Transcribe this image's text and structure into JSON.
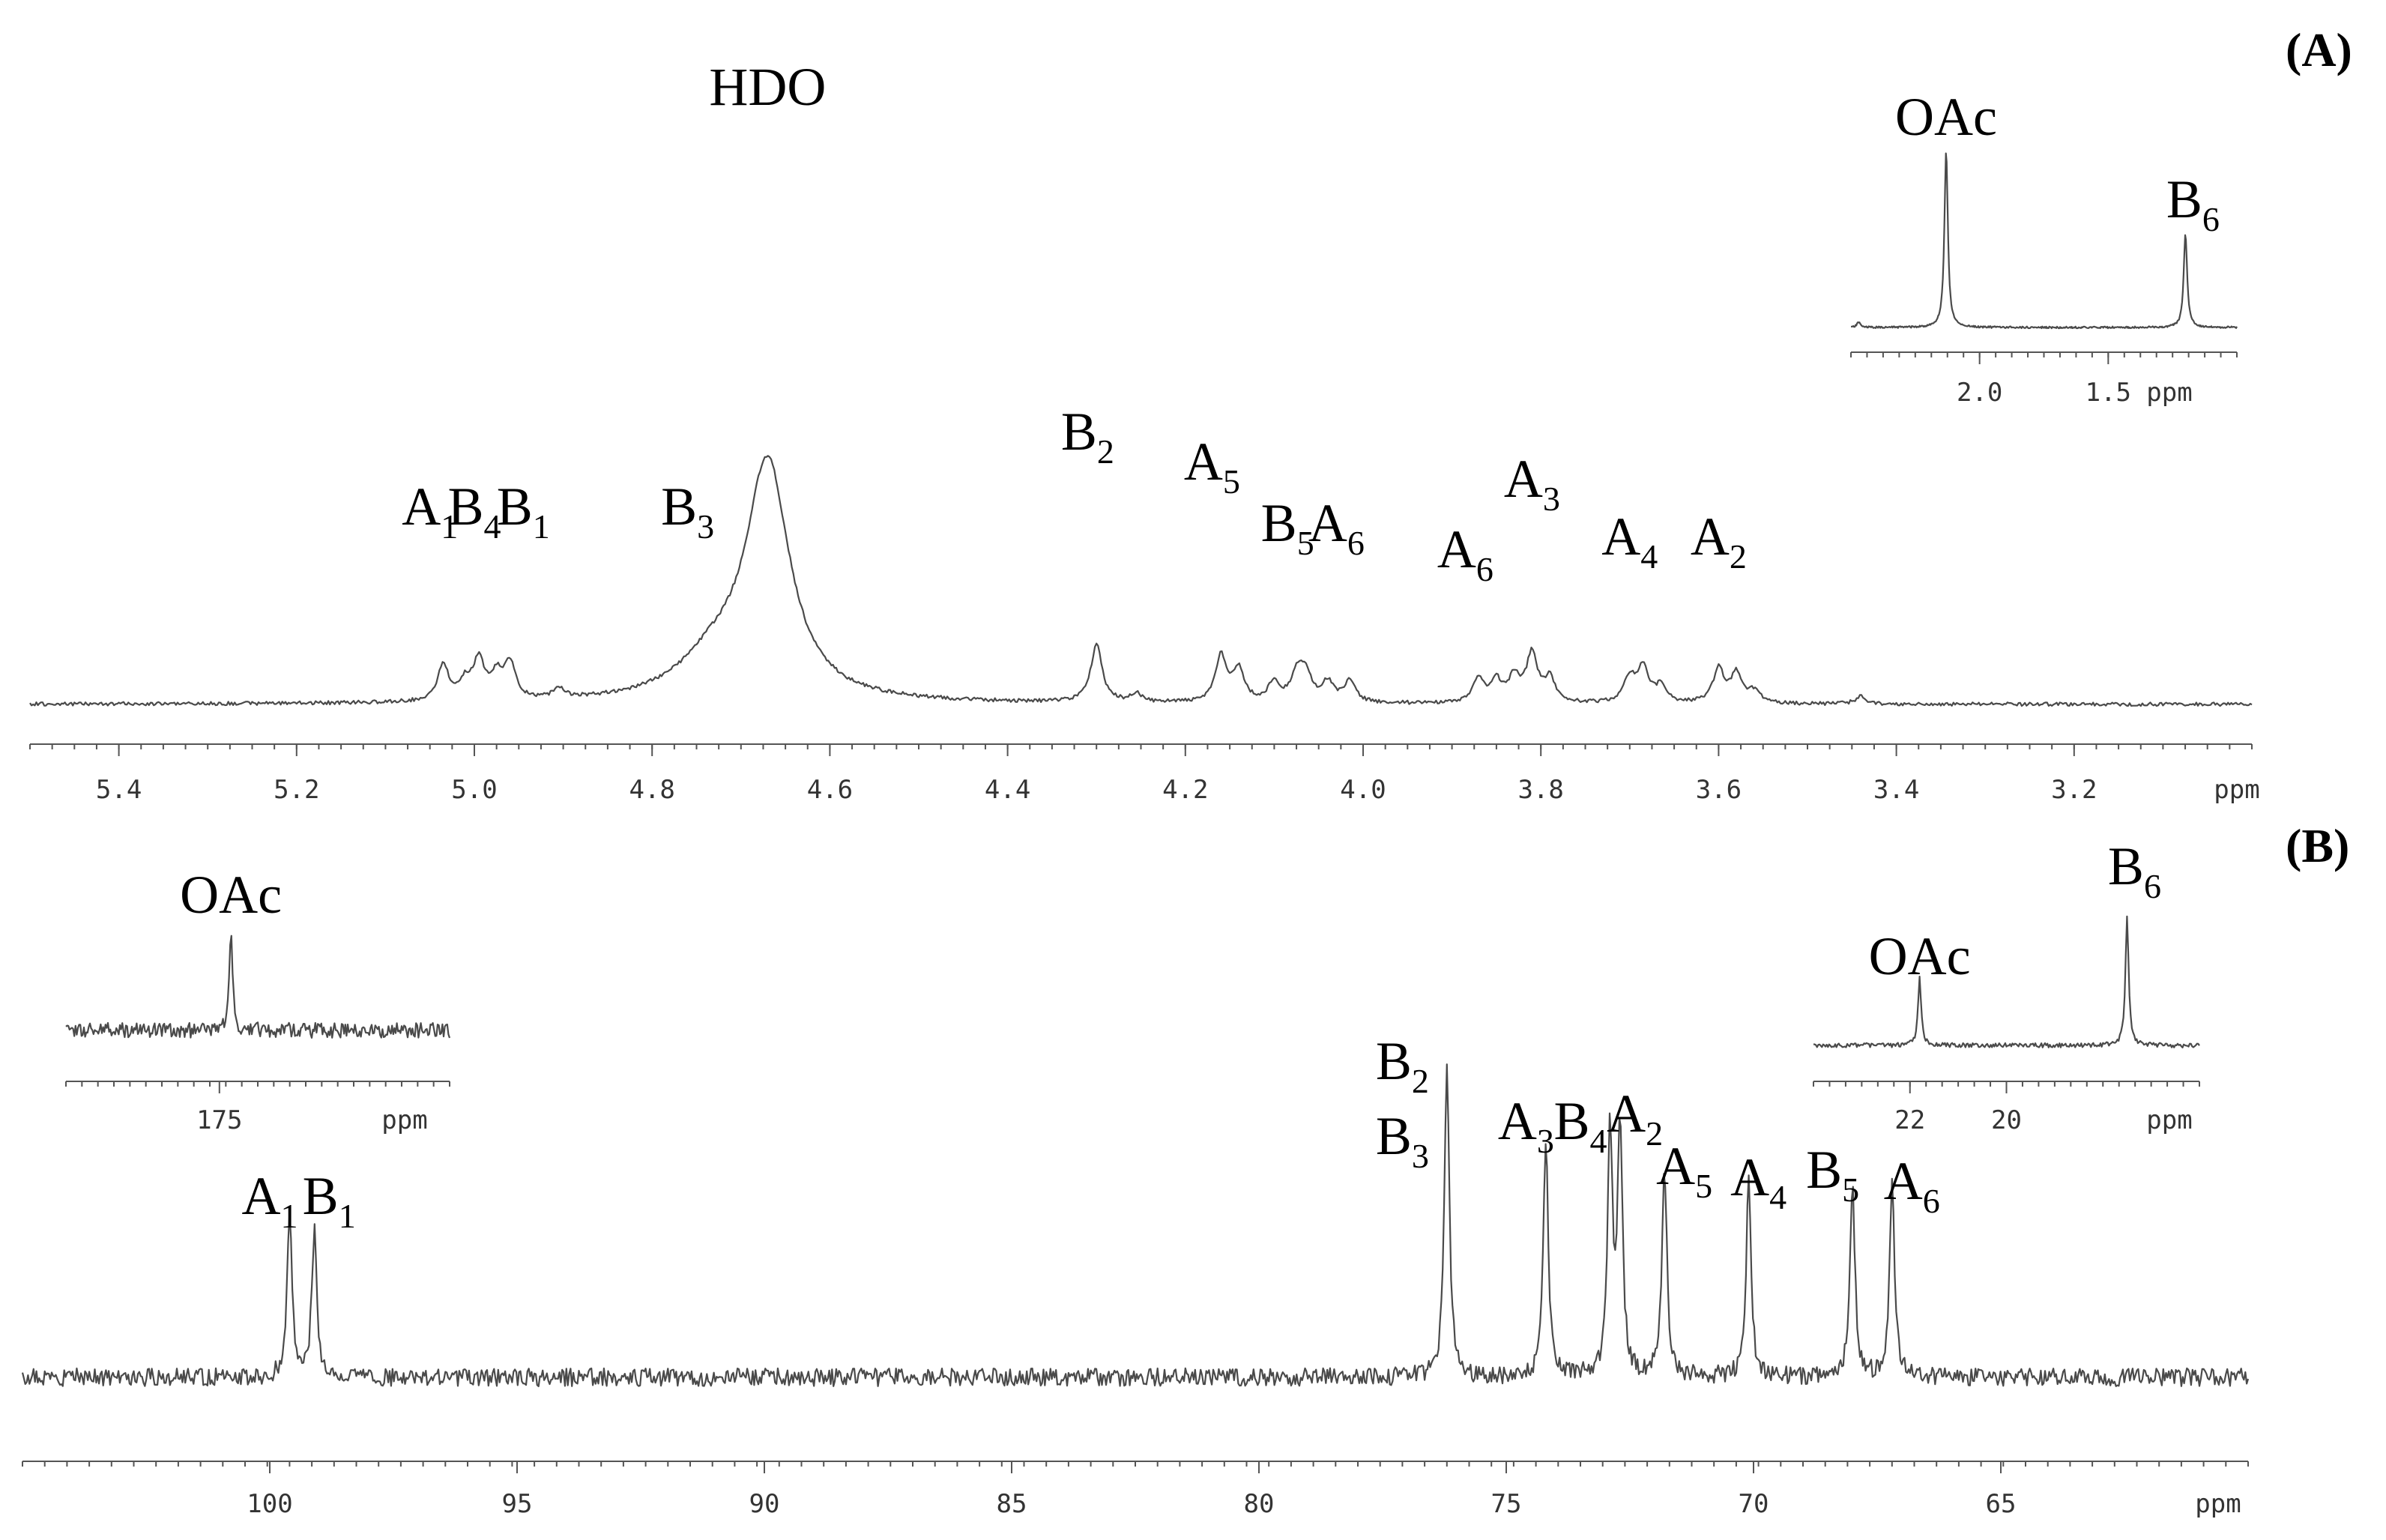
{
  "chart_data": [
    {
      "id": "A",
      "panel_tag": "(A)",
      "type": "line",
      "title": "",
      "xlabel": "ppm",
      "x_unit": "ppm",
      "x_reversed": true,
      "xlim": [
        5.5,
        3.0
      ],
      "x_ticks": [
        "5.4",
        "5.2",
        "5.0",
        "4.8",
        "4.6",
        "4.4",
        "4.2",
        "4.0",
        "3.8",
        "3.6",
        "3.4",
        "3.2"
      ],
      "grid": false,
      "legend": "none",
      "series": [
        {
          "peaks": [
            {
              "x": 5.035,
              "h": 0.25
            },
            {
              "x": 5.01,
              "h": 0.12
            },
            {
              "x": 4.995,
              "h": 0.27
            },
            {
              "x": 4.975,
              "h": 0.16
            },
            {
              "x": 4.96,
              "h": 0.25
            },
            {
              "x": 4.905,
              "h": 0.07
            },
            {
              "x": 4.67,
              "h": 1.6,
              "w": 0.03
            },
            {
              "x": 4.73,
              "h": 0.25,
              "w": 0.05
            },
            {
              "x": 4.3,
              "h": 0.4
            },
            {
              "x": 4.255,
              "h": 0.06
            },
            {
              "x": 4.16,
              "h": 0.32
            },
            {
              "x": 4.14,
              "h": 0.22
            },
            {
              "x": 4.1,
              "h": 0.14
            },
            {
              "x": 4.075,
              "h": 0.18
            },
            {
              "x": 4.065,
              "h": 0.2
            },
            {
              "x": 4.04,
              "h": 0.14
            },
            {
              "x": 4.015,
              "h": 0.15
            },
            {
              "x": 3.87,
              "h": 0.16
            },
            {
              "x": 3.85,
              "h": 0.14
            },
            {
              "x": 3.83,
              "h": 0.17
            },
            {
              "x": 3.81,
              "h": 0.33
            },
            {
              "x": 3.79,
              "h": 0.16
            },
            {
              "x": 3.7,
              "h": 0.17
            },
            {
              "x": 3.685,
              "h": 0.24
            },
            {
              "x": 3.665,
              "h": 0.11
            },
            {
              "x": 3.6,
              "h": 0.23
            },
            {
              "x": 3.58,
              "h": 0.2
            },
            {
              "x": 3.56,
              "h": 0.08
            },
            {
              "x": 3.44,
              "h": 0.05
            }
          ]
        }
      ],
      "annotations": [
        {
          "base": "HDO",
          "sub": "",
          "x": 4.67
        },
        {
          "base": "A",
          "sub": "1",
          "x": 5.05
        },
        {
          "base": "B",
          "sub": "4",
          "x": 5.0
        },
        {
          "base": "B",
          "sub": "1",
          "x": 4.945
        },
        {
          "base": "B",
          "sub": "3",
          "x": 4.76
        },
        {
          "base": "B",
          "sub": "2",
          "x": 4.31
        },
        {
          "base": "A",
          "sub": "5",
          "x": 4.17
        },
        {
          "base": "B",
          "sub": "5",
          "x": 4.085
        },
        {
          "base": "A",
          "sub": "6",
          "x": 4.03
        },
        {
          "base": "A",
          "sub": "6",
          "x": 3.885
        },
        {
          "base": "A",
          "sub": "3",
          "x": 3.81
        },
        {
          "base": "A",
          "sub": "4",
          "x": 3.7
        },
        {
          "base": "A",
          "sub": "2",
          "x": 3.6
        }
      ],
      "inset": {
        "type": "line",
        "xlabel": "ppm",
        "xlim": [
          2.5,
          1.0
        ],
        "x_ticks": [
          "2.0",
          "1.5"
        ],
        "series": [
          {
            "peaks": [
              {
                "x": 2.47,
                "h": 0.03
              },
              {
                "x": 2.13,
                "h": 1.0
              },
              {
                "x": 1.2,
                "h": 0.53
              }
            ]
          }
        ],
        "annotations": [
          {
            "base": "OAc",
            "sub": "",
            "x": 2.13
          },
          {
            "base": "B",
            "sub": "6",
            "x": 1.2
          }
        ]
      }
    },
    {
      "id": "B",
      "panel_tag": "(B)",
      "type": "line",
      "title": "",
      "xlabel": "ppm",
      "x_unit": "ppm",
      "x_reversed": true,
      "xlim": [
        105.0,
        60.0
      ],
      "x_ticks": [
        "100",
        "95",
        "90",
        "85",
        "80",
        "75",
        "70",
        "65"
      ],
      "grid": false,
      "legend": "none",
      "series": [
        {
          "peaks": [
            {
              "x": 99.6,
              "h": 0.52
            },
            {
              "x": 99.1,
              "h": 0.46
            },
            {
              "x": 76.2,
              "h": 1.0
            },
            {
              "x": 74.2,
              "h": 0.75
            },
            {
              "x": 72.9,
              "h": 0.77
            },
            {
              "x": 72.7,
              "h": 0.8
            },
            {
              "x": 71.8,
              "h": 0.66
            },
            {
              "x": 70.1,
              "h": 0.62
            },
            {
              "x": 68.0,
              "h": 0.62
            },
            {
              "x": 67.2,
              "h": 0.62
            }
          ]
        }
      ],
      "annotations": [
        {
          "base": "A",
          "sub": "1",
          "x": 100.0
        },
        {
          "base": "B",
          "sub": "1",
          "x": 98.8
        },
        {
          "base": "B",
          "sub": "2",
          "x": 77.1
        },
        {
          "base": "B",
          "sub": "3",
          "x": 77.1
        },
        {
          "base": "A",
          "sub": "3",
          "x": 74.6
        },
        {
          "base": "B",
          "sub": "4",
          "x": 73.5
        },
        {
          "base": "A",
          "sub": "2",
          "x": 72.4
        },
        {
          "base": "A",
          "sub": "5",
          "x": 71.4
        },
        {
          "base": "A",
          "sub": "4",
          "x": 69.9
        },
        {
          "base": "B",
          "sub": "5",
          "x": 68.4
        },
        {
          "base": "A",
          "sub": "6",
          "x": 66.8
        }
      ],
      "insets": [
        {
          "type": "line",
          "xlabel": "ppm",
          "xlim": [
            179.0,
            169.0
          ],
          "x_ticks": [
            "175"
          ],
          "series": [
            {
              "peaks": [
                {
                  "x": 174.7,
                  "h": 1.0
                }
              ]
            }
          ],
          "annotations": [
            {
              "base": "OAc",
              "sub": "",
              "x": 174.7
            }
          ]
        },
        {
          "type": "line",
          "xlabel": "ppm",
          "xlim": [
            24.0,
            16.0
          ],
          "x_ticks": [
            "22",
            "20"
          ],
          "series": [
            {
              "peaks": [
                {
                  "x": 21.8,
                  "h": 0.45
                },
                {
                  "x": 17.5,
                  "h": 0.85
                }
              ]
            }
          ],
          "annotations": [
            {
              "base": "OAc",
              "sub": "",
              "x": 21.8
            },
            {
              "base": "B",
              "sub": "6",
              "x": 17.5
            }
          ]
        }
      ]
    }
  ]
}
